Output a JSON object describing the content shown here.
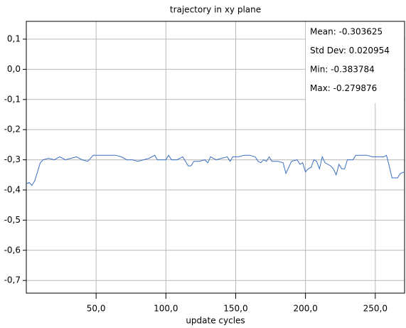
{
  "chart_data": {
    "type": "line",
    "title": "trajectory in xy plane",
    "x_label": "update cycles",
    "stats": [
      "Mean: -0.303625",
      "Std Dev: 0.020954",
      "Min: -0.383784",
      "Max: -0.279876"
    ],
    "xlim": [
      0,
      271
    ],
    "ylim": [
      -0.742,
      0.159
    ],
    "xticks": [
      {
        "value": 50,
        "label": "50,0"
      },
      {
        "value": 100,
        "label": "100,0"
      },
      {
        "value": 150,
        "label": "150,0"
      },
      {
        "value": 200,
        "label": "200,0"
      },
      {
        "value": 250,
        "label": "250,0"
      }
    ],
    "yticks": [
      {
        "value": 0.1,
        "label": "0,1"
      },
      {
        "value": 0,
        "label": "0,0"
      },
      {
        "value": -0.1,
        "label": "-0,1"
      },
      {
        "value": -0.2,
        "label": "-0,2"
      },
      {
        "value": -0.3,
        "label": "-0,3"
      },
      {
        "value": -0.4,
        "label": "-0,4"
      },
      {
        "value": -0.5,
        "label": "-0,5"
      },
      {
        "value": -0.6,
        "label": "-0,6"
      },
      {
        "value": -0.7,
        "label": "-0,7"
      }
    ],
    "grid": true,
    "x": [
      0,
      2,
      4,
      6,
      8,
      10,
      12,
      16,
      20,
      24,
      28,
      32,
      36,
      40,
      44,
      48,
      52,
      56,
      60,
      64,
      68,
      72,
      76,
      80,
      84,
      88,
      92,
      94,
      98,
      100,
      102,
      104,
      108,
      112,
      114,
      116,
      118,
      120,
      124,
      128,
      130,
      132,
      136,
      140,
      144,
      146,
      148,
      152,
      156,
      160,
      164,
      166,
      168,
      170,
      172,
      174,
      176,
      180,
      184,
      186,
      188,
      190,
      194,
      196,
      198,
      200,
      202,
      204,
      206,
      208,
      210,
      212,
      214,
      218,
      220,
      222,
      224,
      226,
      228,
      230,
      234,
      236,
      240,
      244,
      248,
      252,
      256,
      258,
      260,
      262,
      266,
      268,
      271
    ],
    "series": [
      {
        "color": "#3a6fc0",
        "values": [
          -0.38,
          -0.375,
          -0.385,
          -0.37,
          -0.34,
          -0.31,
          -0.3,
          -0.295,
          -0.3,
          -0.29,
          -0.3,
          -0.295,
          -0.29,
          -0.3,
          -0.305,
          -0.285,
          -0.285,
          -0.285,
          -0.285,
          -0.285,
          -0.29,
          -0.3,
          -0.3,
          -0.305,
          -0.3,
          -0.295,
          -0.285,
          -0.3,
          -0.3,
          -0.3,
          -0.285,
          -0.3,
          -0.3,
          -0.29,
          -0.305,
          -0.32,
          -0.32,
          -0.305,
          -0.305,
          -0.3,
          -0.31,
          -0.29,
          -0.3,
          -0.295,
          -0.29,
          -0.305,
          -0.29,
          -0.29,
          -0.285,
          -0.285,
          -0.29,
          -0.305,
          -0.31,
          -0.3,
          -0.305,
          -0.29,
          -0.305,
          -0.305,
          -0.31,
          -0.345,
          -0.325,
          -0.305,
          -0.3,
          -0.315,
          -0.31,
          -0.34,
          -0.33,
          -0.325,
          -0.3,
          -0.305,
          -0.33,
          -0.29,
          -0.31,
          -0.32,
          -0.33,
          -0.35,
          -0.315,
          -0.33,
          -0.33,
          -0.3,
          -0.3,
          -0.285,
          -0.285,
          -0.285,
          -0.29,
          -0.29,
          -0.29,
          -0.285,
          -0.32,
          -0.36,
          -0.36,
          -0.345,
          -0.34
        ]
      }
    ]
  }
}
